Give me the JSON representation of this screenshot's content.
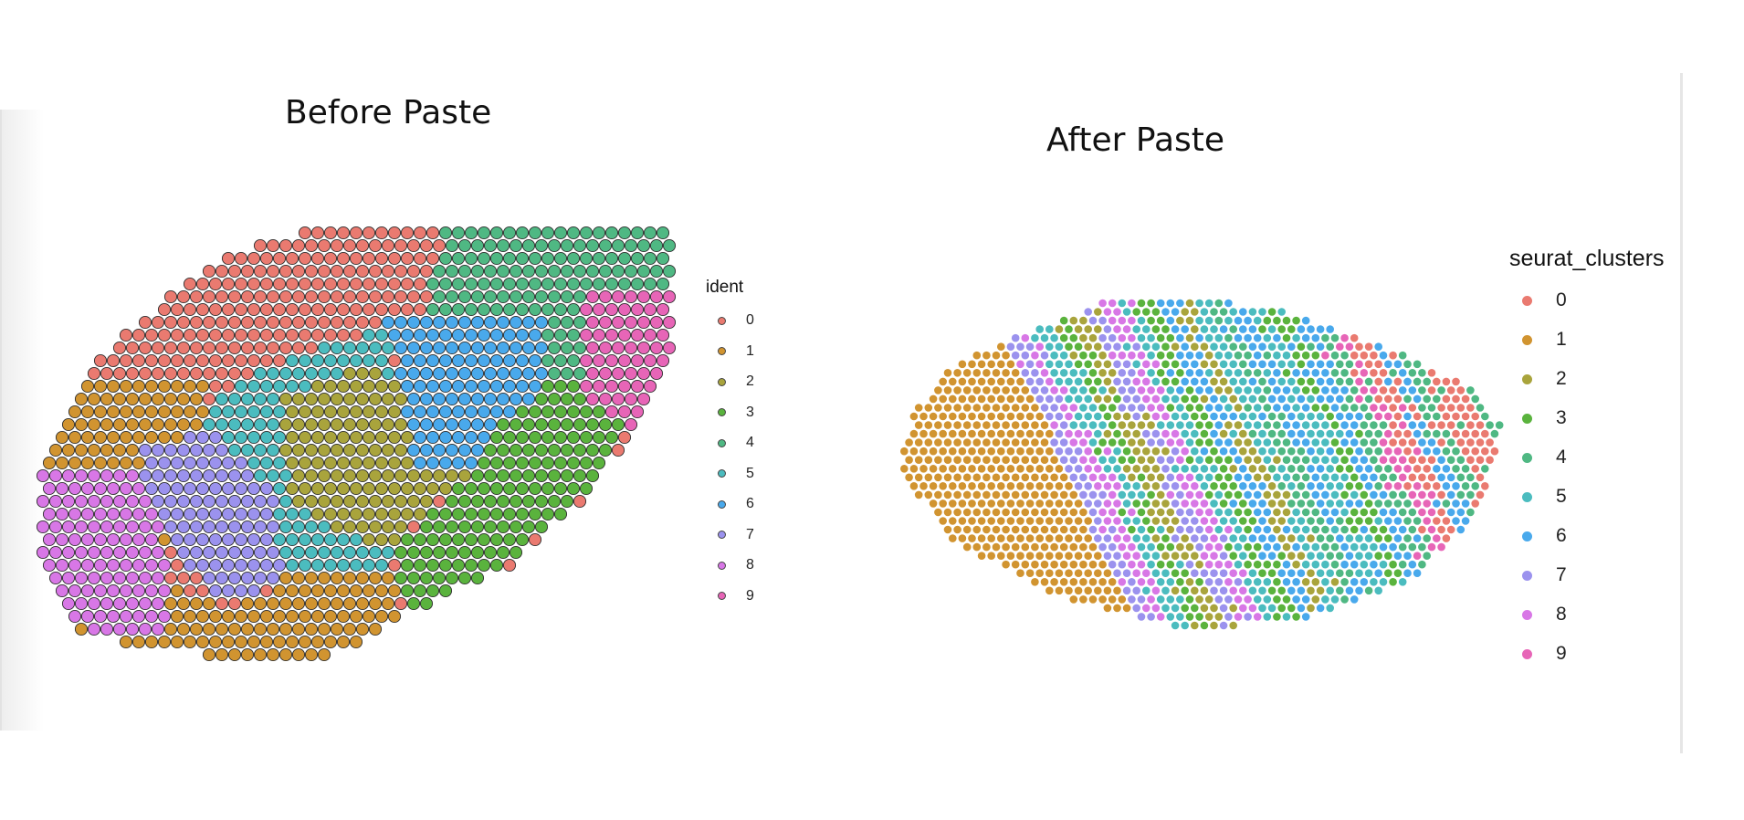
{
  "chart_data": [
    {
      "type": "scatter",
      "title": "Before Paste",
      "legend": {
        "title": "ident",
        "placement": "right",
        "entries": [
          "0",
          "1",
          "2",
          "3",
          "4",
          "5",
          "6",
          "7",
          "8",
          "9"
        ]
      },
      "grid": false,
      "axes": false,
      "marker": "outlined circle",
      "description_of_layout": "spatial spot map; clusters form contiguous regions"
    },
    {
      "type": "scatter",
      "title": "After Paste",
      "legend": {
        "title": "seurat_clusters",
        "placement": "right",
        "entries": [
          "0",
          "1",
          "2",
          "3",
          "4",
          "5",
          "6",
          "7",
          "8",
          "9"
        ]
      },
      "grid": false,
      "axes": false,
      "marker": "filled circle"
    }
  ],
  "palette": {
    "0": "#F8766D",
    "1": "#D39200",
    "2": "#93AA00",
    "3": "#00BA38",
    "4": "#00C19F",
    "5": "#00B9E3",
    "6": "#619CFF",
    "7": "#9C8DF2",
    "8": "#DB72FB",
    "9": "#FF61C3"
  },
  "colors": {
    "0": "#ea7a70",
    "1": "#d19430",
    "2": "#a9a43c",
    "3": "#5ab33d",
    "4": "#4fb883",
    "5": "#4bbcbf",
    "6": "#49a9ec",
    "7": "#9b92ee",
    "8": "#d877e6",
    "9": "#e765b7"
  }
}
